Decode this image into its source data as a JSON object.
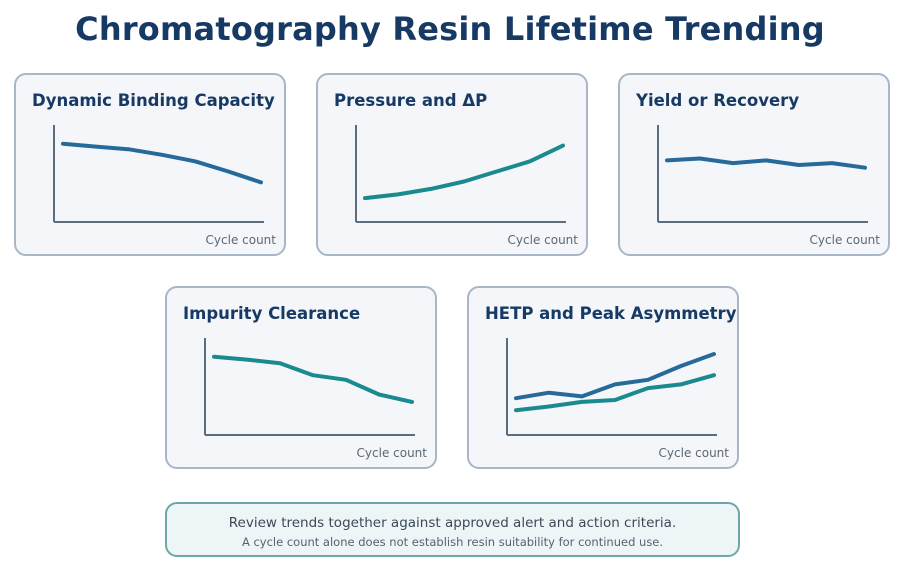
{
  "title": "Chromatography Resin Lifetime Trending",
  "colors": {
    "title": "#173a64",
    "panel_bg": "#f4f6fa",
    "panel_border": "#a8b7c8",
    "axis": "#5b6e7f",
    "series_blue": "#266a9a",
    "series_teal": "#1b8a8f",
    "note_bg": "#eef5f6",
    "note_border": "#6da7a9"
  },
  "panels": [
    {
      "title": "Dynamic Binding Capacity",
      "x_label": "Cycle count",
      "series": [
        {
          "color": "#266a9a",
          "values": [
            0.85,
            0.82,
            0.79,
            0.73,
            0.66,
            0.55,
            0.43
          ]
        }
      ]
    },
    {
      "title": "Pressure and ΔP",
      "x_label": "Cycle count",
      "series": [
        {
          "color": "#1b8a8f",
          "values": [
            0.26,
            0.3,
            0.36,
            0.44,
            0.55,
            0.66,
            0.83
          ]
        }
      ]
    },
    {
      "title": "Yield or Recovery",
      "x_label": "Cycle count",
      "series": [
        {
          "color": "#266a9a",
          "values": [
            0.67,
            0.69,
            0.64,
            0.67,
            0.62,
            0.64,
            0.59
          ]
        }
      ]
    },
    {
      "title": "Impurity Clearance",
      "x_label": "Cycle count",
      "series": [
        {
          "color": "#1b8a8f",
          "values": [
            0.85,
            0.82,
            0.78,
            0.65,
            0.6,
            0.44,
            0.36
          ]
        }
      ]
    },
    {
      "title": "HETP and Peak Asymmetry",
      "x_label": "Cycle count",
      "series": [
        {
          "color": "#266a9a",
          "values": [
            0.4,
            0.46,
            0.42,
            0.55,
            0.6,
            0.75,
            0.88
          ]
        },
        {
          "color": "#1b8a8f",
          "values": [
            0.27,
            0.31,
            0.36,
            0.38,
            0.51,
            0.55,
            0.65
          ]
        }
      ]
    }
  ],
  "note": {
    "main": "Review trends together against approved alert and action criteria.",
    "sub": "A cycle count alone does not establish resin suitability for continued use."
  }
}
